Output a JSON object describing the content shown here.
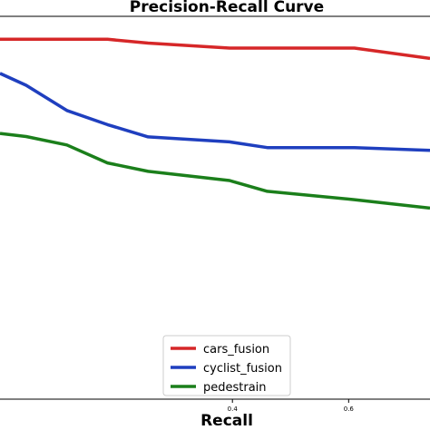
{
  "chart_data": {
    "type": "line",
    "title": "Precision-Recall Curve",
    "xlabel": "Recall",
    "ylabel": "",
    "xlim": [
      0.0,
      0.74
    ],
    "ylim": [
      0.0,
      1.0
    ],
    "xticks": [
      0.4,
      0.6
    ],
    "xtick_labels": [
      "0.4",
      "0.6"
    ],
    "grid": false,
    "legend_position": "lower-center",
    "series": [
      {
        "name": "cars_fusion",
        "color": "#d62728",
        "x": [
          0.0,
          0.045,
          0.115,
          0.185,
          0.255,
          0.395,
          0.46,
          0.61,
          0.74
        ],
        "y": [
          0.94,
          0.94,
          0.94,
          0.94,
          0.93,
          0.917,
          0.917,
          0.917,
          0.89
        ]
      },
      {
        "name": "cyclist_fusion",
        "color": "#1f3fbf",
        "x": [
          0.0,
          0.045,
          0.115,
          0.185,
          0.255,
          0.395,
          0.46,
          0.61,
          0.74
        ],
        "y": [
          0.851,
          0.82,
          0.754,
          0.717,
          0.685,
          0.672,
          0.657,
          0.657,
          0.65
        ]
      },
      {
        "name": "pedestrain",
        "color": "#1b7f1b",
        "x": [
          0.0,
          0.045,
          0.115,
          0.185,
          0.255,
          0.395,
          0.46,
          0.61,
          0.74
        ],
        "y": [
          0.694,
          0.686,
          0.664,
          0.617,
          0.595,
          0.571,
          0.543,
          0.521,
          0.499
        ]
      }
    ]
  }
}
